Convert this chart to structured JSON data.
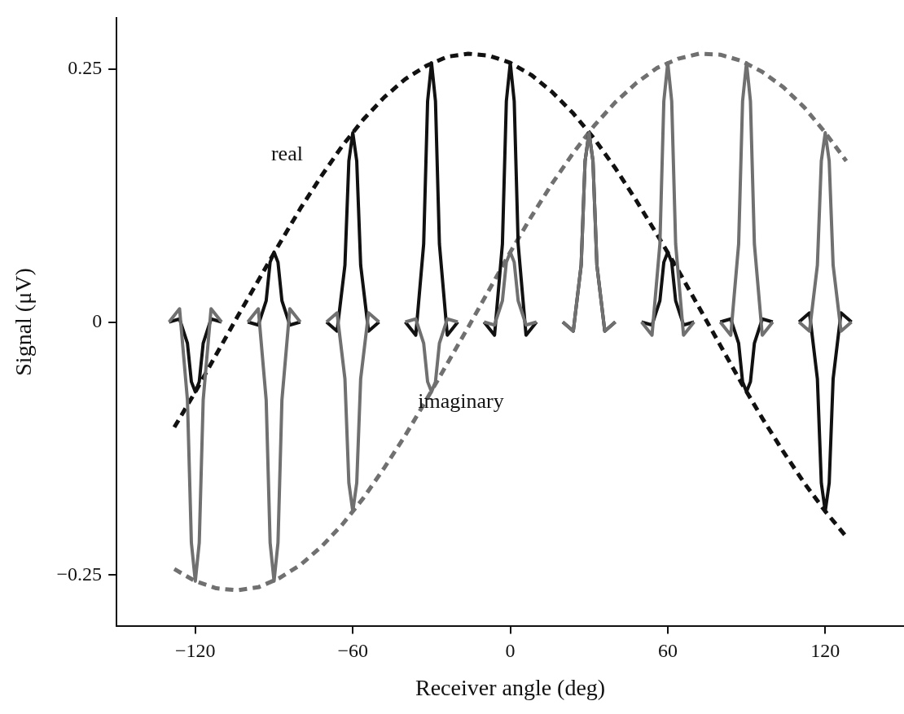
{
  "chart_data": {
    "type": "line",
    "xlabel": "Receiver angle (deg)",
    "ylabel": "Signal (μV)",
    "xlim": [
      -150,
      150
    ],
    "xticks": [
      {
        "value": -120,
        "label": "−120"
      },
      {
        "value": -60,
        "label": "−60"
      },
      0,
      60,
      120
    ],
    "ylim": [
      -0.3,
      0.3
    ],
    "yticks": [
      {
        "value": -0.25,
        "label": "−0.25"
      },
      0,
      0.25
    ],
    "marker": "none",
    "legend": false,
    "series": [
      {
        "color": "#707070",
        "line_style": "solid",
        "x": [
          -130,
          -126,
          -123,
          -121.5,
          -120,
          -118.5,
          -117,
          -114,
          -110,
          -105,
          -100,
          -96,
          -93,
          -91.5,
          -90,
          -88.5,
          -87,
          -84,
          -80,
          -75,
          -70,
          -66,
          -63,
          -61.5,
          -60,
          -58.5,
          -57,
          -54,
          -50,
          -45,
          -40,
          -36,
          -33,
          -31.5,
          -30,
          -28.5,
          -27,
          -24,
          -20,
          -15,
          -10,
          -6,
          -3,
          -1.5,
          0,
          1.5,
          3,
          6,
          10,
          15,
          20,
          24,
          27,
          28.5,
          30,
          31.5,
          33,
          36,
          40,
          45,
          50,
          54,
          57,
          58.5,
          60,
          61.5,
          63,
          66,
          70,
          75,
          80,
          84,
          87,
          88.5,
          90,
          91.5,
          93,
          96,
          100,
          105,
          110,
          114,
          117,
          118.5,
          120,
          121.5,
          123,
          126,
          130
        ],
        "values": [
          0,
          0.013,
          -0.077,
          -0.218,
          -0.256,
          -0.218,
          -0.077,
          0.013,
          0,
          null,
          0,
          0.013,
          -0.077,
          -0.218,
          -0.256,
          -0.218,
          -0.077,
          0.013,
          0,
          null,
          0,
          0.009,
          -0.056,
          -0.159,
          -0.187,
          -0.159,
          -0.056,
          0.009,
          0,
          null,
          0,
          0.003,
          -0.021,
          -0.059,
          -0.069,
          -0.059,
          -0.021,
          0.003,
          0,
          null,
          0,
          -0.003,
          0.021,
          0.059,
          0.069,
          0.059,
          0.021,
          -0.003,
          0,
          null,
          0,
          -0.009,
          0.056,
          0.159,
          0.187,
          0.159,
          0.056,
          -0.009,
          0,
          null,
          0,
          -0.013,
          0.077,
          0.218,
          0.256,
          0.218,
          0.077,
          -0.013,
          0,
          null,
          0,
          -0.013,
          0.077,
          0.218,
          0.256,
          0.218,
          0.077,
          -0.013,
          0,
          null,
          0,
          -0.009,
          0.056,
          0.159,
          0.187,
          0.159,
          0.056,
          -0.009,
          0
        ]
      },
      {
        "color": "#111111",
        "line_style": "solid",
        "x": [
          -130,
          -126,
          -123,
          -121.5,
          -120,
          -118.5,
          -117,
          -114,
          -110,
          -105,
          -100,
          -96,
          -93,
          -91.5,
          -90,
          -88.5,
          -87,
          -84,
          -80,
          -75,
          -70,
          -66,
          -63,
          -61.5,
          -60,
          -58.5,
          -57,
          -54,
          -50,
          -45,
          -40,
          -36,
          -33,
          -31.5,
          -30,
          -28.5,
          -27,
          -24,
          -20,
          -15,
          -10,
          -6,
          -3,
          -1.5,
          0,
          1.5,
          3,
          6,
          10,
          15,
          20,
          24,
          27,
          28.5,
          30,
          31.5,
          33,
          36,
          40,
          45,
          50,
          54,
          57,
          58.5,
          60,
          61.5,
          63,
          66,
          70,
          75,
          80,
          84,
          87,
          88.5,
          90,
          91.5,
          93,
          96,
          100,
          105,
          110,
          114,
          117,
          118.5,
          120,
          121.5,
          123,
          126,
          130
        ],
        "values": [
          0,
          0.003,
          -0.021,
          -0.059,
          -0.069,
          -0.059,
          -0.021,
          0.003,
          0,
          null,
          0,
          -0.003,
          0.021,
          0.059,
          0.069,
          0.059,
          0.021,
          -0.003,
          0,
          null,
          0,
          -0.009,
          0.056,
          0.159,
          0.187,
          0.159,
          0.056,
          -0.009,
          0,
          null,
          0,
          -0.013,
          0.077,
          0.218,
          0.256,
          0.218,
          0.077,
          -0.013,
          0,
          null,
          0,
          -0.013,
          0.077,
          0.218,
          0.256,
          0.218,
          0.077,
          -0.013,
          0,
          null,
          0,
          -0.009,
          0.056,
          0.159,
          0.187,
          0.159,
          0.056,
          -0.009,
          0,
          null,
          0,
          -0.003,
          0.021,
          0.059,
          0.069,
          0.059,
          0.021,
          -0.003,
          0,
          null,
          0,
          0.003,
          -0.021,
          -0.059,
          -0.069,
          -0.059,
          -0.021,
          0.003,
          0,
          null,
          0,
          0.009,
          -0.056,
          -0.159,
          -0.187,
          -0.159,
          -0.056,
          0.009,
          0
        ]
      },
      {
        "name": "real",
        "color": "#111111",
        "line_style": "dashed",
        "x": [
          -128,
          -120,
          -112,
          -104,
          -96,
          -88,
          -80,
          -72,
          -64,
          -56,
          -48,
          -40,
          -32,
          -24,
          -16,
          -8,
          0,
          8,
          16,
          24,
          32,
          40,
          48,
          56,
          64,
          72,
          80,
          88,
          96,
          104,
          112,
          120,
          128
        ],
        "values": [
          -0.104,
          -0.069,
          -0.032,
          0.005,
          0.041,
          0.077,
          0.112,
          0.144,
          0.174,
          0.2,
          0.222,
          0.24,
          0.253,
          0.262,
          0.265,
          0.263,
          0.256,
          0.244,
          0.227,
          0.206,
          0.181,
          0.152,
          0.12,
          0.086,
          0.051,
          0.014,
          -0.023,
          -0.06,
          -0.095,
          -0.128,
          -0.159,
          -0.187,
          -0.212
        ]
      },
      {
        "name": "imaginary",
        "color": "#707070",
        "line_style": "dashed",
        "x": [
          -128,
          -120,
          -112,
          -104,
          -96,
          -88,
          -80,
          -72,
          -64,
          -56,
          -48,
          -40,
          -32,
          -24,
          -16,
          -8,
          0,
          8,
          16,
          24,
          32,
          40,
          48,
          56,
          64,
          72,
          80,
          88,
          96,
          104,
          112,
          120,
          128
        ],
        "values": [
          -0.244,
          -0.256,
          -0.263,
          -0.265,
          -0.262,
          -0.253,
          -0.24,
          -0.222,
          -0.2,
          -0.174,
          -0.144,
          -0.112,
          -0.077,
          -0.041,
          -0.005,
          0.032,
          0.069,
          0.104,
          0.137,
          0.167,
          0.194,
          0.217,
          0.236,
          0.251,
          0.26,
          0.265,
          0.264,
          0.258,
          0.247,
          0.232,
          0.212,
          0.187,
          0.159
        ]
      }
    ]
  }
}
